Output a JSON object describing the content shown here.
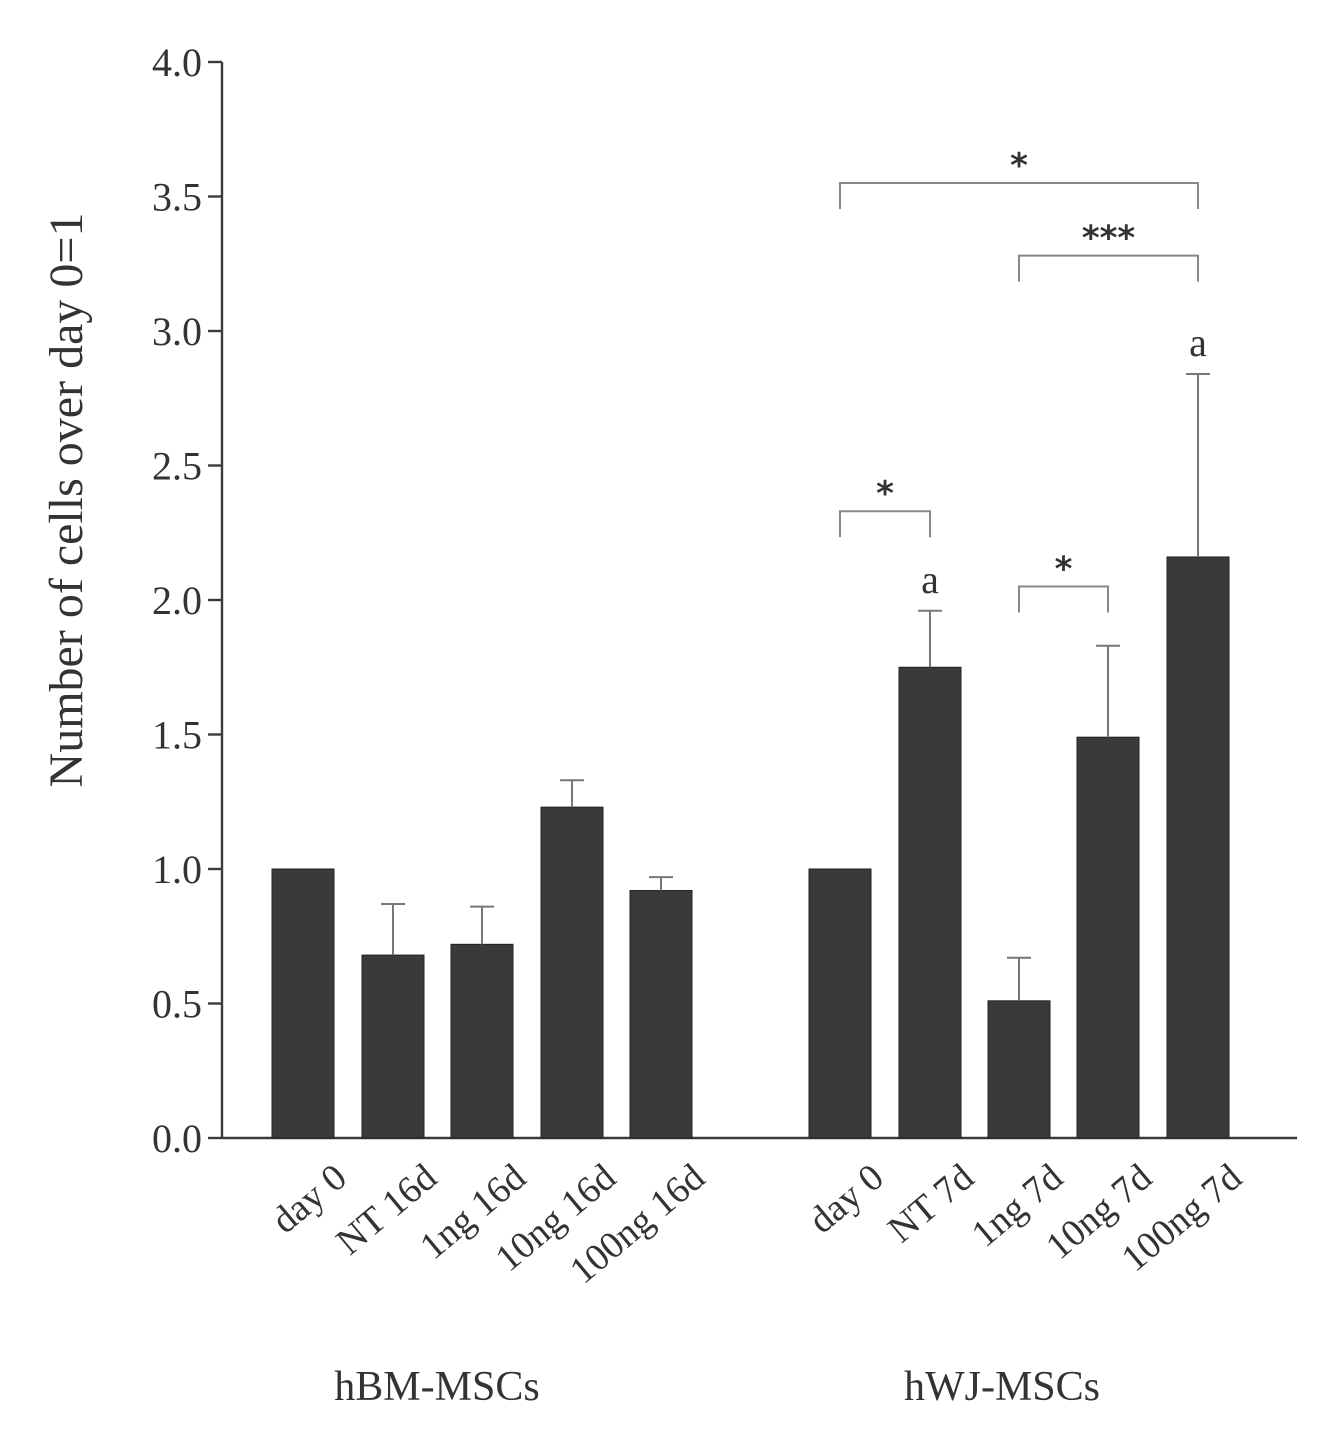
{
  "chart_data": {
    "type": "bar",
    "title": "",
    "xlabel": "",
    "ylabel": "Number of cells over day 0=1",
    "ylim": [
      0,
      4.0
    ],
    "yticks": [
      0.0,
      0.5,
      1.0,
      1.5,
      2.0,
      2.5,
      3.0,
      3.5,
      4.0
    ],
    "ytick_labels": [
      "0.0",
      "0.5",
      "1.0",
      "1.5",
      "2.0",
      "2.5",
      "3.0",
      "3.5",
      "4.0"
    ],
    "grid": false,
    "groups": [
      {
        "name": "hBM-MSCs",
        "categories": [
          "day 0",
          "NT 16d",
          "1ng 16d",
          "10ng 16d",
          "100ng 16d"
        ],
        "values": [
          1.0,
          0.68,
          0.72,
          1.23,
          0.92
        ],
        "errors": [
          0.0,
          0.19,
          0.14,
          0.1,
          0.05
        ],
        "letters": [
          "",
          "",
          "",
          "",
          ""
        ]
      },
      {
        "name": "hWJ-MSCs",
        "categories": [
          "day 0",
          "NT 7d",
          "1ng 7d",
          "10ng 7d",
          "100ng 7d"
        ],
        "values": [
          1.0,
          1.75,
          0.51,
          1.49,
          2.16
        ],
        "errors": [
          0.0,
          0.21,
          0.16,
          0.34,
          0.68
        ],
        "letters": [
          "",
          "a",
          "",
          "",
          "a"
        ]
      }
    ],
    "significance": [
      {
        "group": 1,
        "from": 0,
        "to": 4,
        "label": "*",
        "y": 3.55
      },
      {
        "group": 1,
        "from": 2,
        "to": 4,
        "label": "***",
        "y": 3.28
      },
      {
        "group": 1,
        "from": 0,
        "to": 1,
        "label": "*",
        "y": 2.33
      },
      {
        "group": 1,
        "from": 2,
        "to": 3,
        "label": "*",
        "y": 2.05
      }
    ]
  }
}
